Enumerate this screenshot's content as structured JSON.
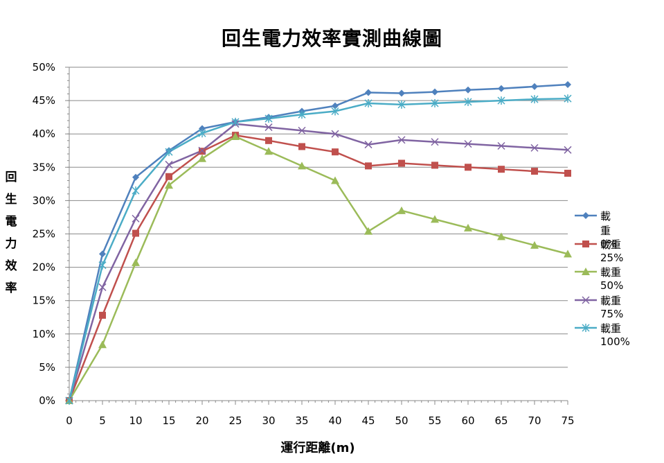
{
  "chart_data": {
    "type": "line",
    "title": "回生電力效率實測曲線圖",
    "xlabel": "運行距離(m)",
    "ylabel": "回生電力效率",
    "x": [
      0,
      5,
      10,
      15,
      20,
      25,
      30,
      35,
      40,
      45,
      50,
      55,
      60,
      65,
      70,
      75
    ],
    "xlim": [
      0,
      75
    ],
    "ylim": [
      0,
      50
    ],
    "y_tick_labels": [
      "0%",
      "5%",
      "10%",
      "15%",
      "20%",
      "25%",
      "30%",
      "35%",
      "40%",
      "45%",
      "50%"
    ],
    "x_tick_labels": [
      "0",
      "5",
      "10",
      "15",
      "20",
      "25",
      "30",
      "35",
      "40",
      "45",
      "50",
      "55",
      "60",
      "65",
      "70",
      "75"
    ],
    "grid": "horizontal",
    "legend_position": "right",
    "series": [
      {
        "name": "載重0%",
        "color": "#4F81BD",
        "marker": "diamond",
        "values": [
          0,
          22.0,
          33.5,
          37.5,
          40.8,
          41.8,
          42.5,
          43.4,
          44.2,
          46.2,
          46.1,
          46.3,
          46.6,
          46.8,
          47.1,
          47.4
        ]
      },
      {
        "name": "載重25%",
        "color": "#C0504D",
        "marker": "square",
        "values": [
          0,
          12.8,
          25.1,
          33.6,
          37.4,
          39.8,
          39.0,
          38.1,
          37.3,
          35.2,
          35.6,
          35.3,
          35.0,
          34.7,
          34.4,
          34.1
        ]
      },
      {
        "name": "載重50%",
        "color": "#9BBB59",
        "marker": "triangle",
        "values": [
          0,
          8.4,
          20.7,
          32.3,
          36.3,
          39.6,
          37.4,
          35.2,
          33.0,
          25.4,
          28.5,
          27.2,
          25.9,
          24.6,
          23.3,
          22.0
        ]
      },
      {
        "name": "載重75%",
        "color": "#8064A2",
        "marker": "x",
        "values": [
          0,
          17.0,
          27.3,
          35.4,
          37.5,
          41.5,
          41.0,
          40.5,
          40.0,
          38.4,
          39.1,
          38.8,
          38.5,
          38.2,
          37.9,
          37.6
        ]
      },
      {
        "name": "載重100%",
        "color": "#4BACC6",
        "marker": "star",
        "values": [
          0,
          20.3,
          31.5,
          37.3,
          40.1,
          41.8,
          42.3,
          42.9,
          43.4,
          44.6,
          44.4,
          44.6,
          44.8,
          45.0,
          45.2,
          45.3
        ]
      }
    ]
  }
}
